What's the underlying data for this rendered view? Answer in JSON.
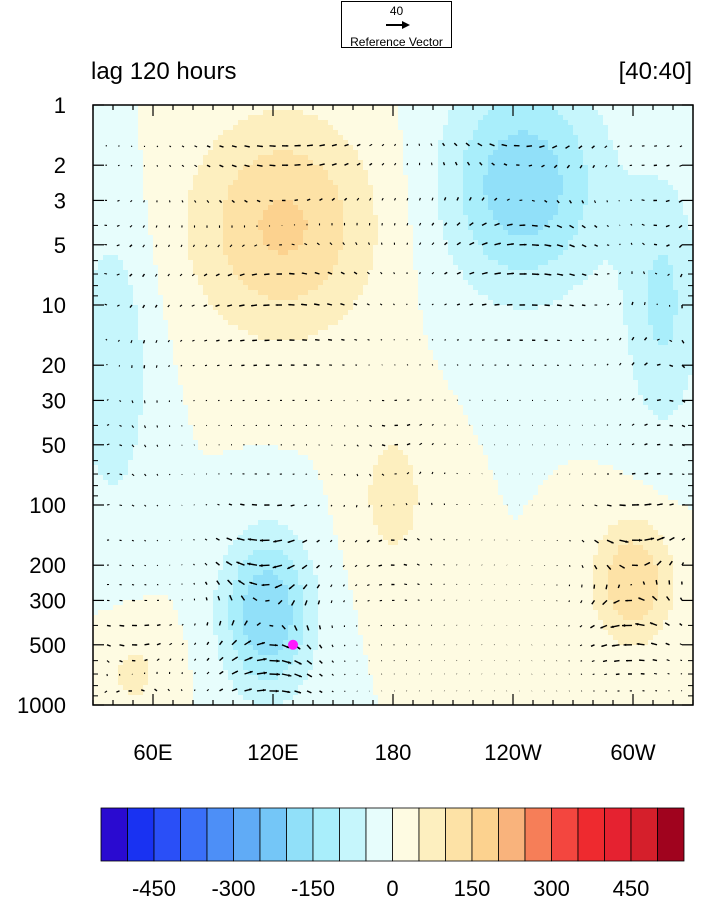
{
  "reference_vector": {
    "magnitude_label": "40",
    "label": "Reference Vector"
  },
  "titles": {
    "left": "lag 120 hours",
    "right": "[40:40]"
  },
  "colors": {
    "levels": [
      "#2a0ad0",
      "#1932f2",
      "#2a4ff7",
      "#3a6ff8",
      "#4d8ff7",
      "#60abf6",
      "#74c6f7",
      "#91e0f9",
      "#a9eefb",
      "#c6f6fc",
      "#e7fdfc",
      "#fefbe2",
      "#fdefbf",
      "#fde2a6",
      "#fcd28f",
      "#f9b37c",
      "#f67e58",
      "#f3463f",
      "#ee2a2f",
      "#e52230",
      "#d51f2b",
      "#a0031e"
    ],
    "marker": "#ff19ff",
    "arrow": "#000000"
  },
  "chart_data": {
    "type": "heatmap",
    "title": "lag 120 hours",
    "subtitle": "[40:40]",
    "x_ticks": [
      "60E",
      "120E",
      "180",
      "120W",
      "60W"
    ],
    "x_tick_longitudes": [
      60,
      120,
      180,
      240,
      300
    ],
    "xlim": [
      30,
      330
    ],
    "y_ticks": [
      "1",
      "2",
      "3",
      "5",
      "10",
      "20",
      "30",
      "50",
      "100",
      "200",
      "300",
      "500",
      "1000"
    ],
    "y_tick_values": [
      1,
      2,
      3,
      5,
      10,
      20,
      30,
      50,
      100,
      200,
      300,
      500,
      1000
    ],
    "ylim": [
      1,
      1000
    ],
    "y_scale": "log",
    "y_reversed": true,
    "colorbar": {
      "levels": [
        -525,
        -475,
        -425,
        -375,
        -325,
        -275,
        -225,
        -175,
        -125,
        -75,
        -25,
        25,
        75,
        125,
        175,
        225,
        275,
        325,
        375,
        425,
        475,
        525
      ],
      "tick_labels": [
        "-450",
        "-300",
        "-150",
        "0",
        "150",
        "300",
        "450"
      ],
      "tick_values": [
        -450,
        -300,
        -150,
        0,
        150,
        300,
        450
      ]
    },
    "features": [
      {
        "name": "stratospheric positive",
        "lon": 125,
        "p": 4,
        "amplitude": 160,
        "lon_width": 32,
        "logp_width": 0.38
      },
      {
        "name": "stratospheric negative",
        "lon": 245,
        "p": 2.5,
        "amplitude": -190,
        "lon_width": 28,
        "logp_width": 0.38
      },
      {
        "name": "western negative",
        "lon": 40,
        "p": 20,
        "amplitude": -90,
        "lon_width": 14,
        "logp_width": 0.55
      },
      {
        "name": "lower negative",
        "lon": 117,
        "p": 350,
        "amplitude": -200,
        "lon_width": 16,
        "logp_width": 0.28
      },
      {
        "name": "lower positive",
        "lon": 300,
        "p": 240,
        "amplitude": 150,
        "lon_width": 14,
        "logp_width": 0.22
      },
      {
        "name": "eastern negative",
        "lon": 315,
        "p": 10,
        "amplitude": -110,
        "lon_width": 14,
        "logp_width": 0.45
      },
      {
        "name": "central positive",
        "lon": 180,
        "p": 90,
        "amplitude": 70,
        "lon_width": 14,
        "logp_width": 0.3
      },
      {
        "name": "surface positive",
        "lon": 50,
        "p": 700,
        "amplitude": 60,
        "lon_width": 14,
        "logp_width": 0.18
      }
    ],
    "marker": {
      "lon": 130,
      "p": 500
    },
    "reference_vector_magnitude": 40
  }
}
